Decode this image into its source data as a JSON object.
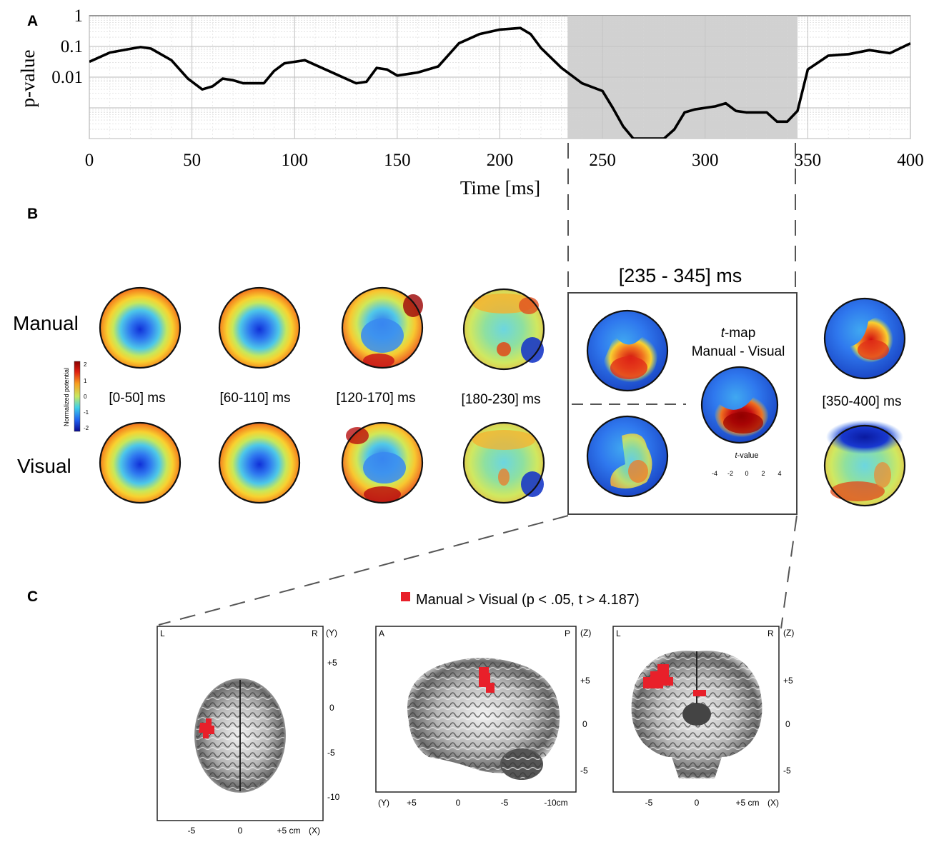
{
  "panels": {
    "a_label": "A",
    "b_label": "B",
    "c_label": "C"
  },
  "chart_data": {
    "type": "line",
    "title": "",
    "xlabel": "Time [ms]",
    "ylabel": "p-value",
    "xlim": [
      0,
      400
    ],
    "ylim_log10": [
      -4,
      0
    ],
    "x_ticks": [
      0,
      50,
      100,
      150,
      200,
      250,
      300,
      350,
      400
    ],
    "x_tick_labels": [
      "0",
      "50",
      "100",
      "150",
      "200",
      "250",
      "300",
      "350",
      "400"
    ],
    "y_tick_labels": [
      "1",
      "0.1",
      "0.01"
    ],
    "y_tick_values": [
      1,
      0.1,
      0.01
    ],
    "grid": true,
    "shaded_interval_ms": [
      233,
      345
    ],
    "series": [
      {
        "name": "p-value",
        "x": [
          0,
          10,
          20,
          25,
          30,
          40,
          48,
          55,
          60,
          65,
          70,
          75,
          80,
          85,
          90,
          95,
          100,
          105,
          110,
          120,
          130,
          135,
          140,
          145,
          150,
          155,
          160,
          170,
          180,
          190,
          200,
          210,
          215,
          220,
          230,
          240,
          250,
          255,
          260,
          265,
          270,
          280,
          285,
          290,
          295,
          300,
          305,
          310,
          315,
          320,
          325,
          330,
          335,
          340,
          345,
          350,
          360,
          370,
          380,
          390,
          400
        ],
        "y_log10": [
          -1.5,
          -1.2,
          -1.08,
          -1.02,
          -1.07,
          -1.45,
          -2.05,
          -2.4,
          -2.3,
          -2.05,
          -2.1,
          -2.2,
          -2.2,
          -2.2,
          -1.8,
          -1.55,
          -1.5,
          -1.45,
          -1.6,
          -1.9,
          -2.2,
          -2.15,
          -1.7,
          -1.75,
          -1.95,
          -1.9,
          -1.85,
          -1.65,
          -0.9,
          -0.6,
          -0.45,
          -0.4,
          -0.6,
          -1.05,
          -1.7,
          -2.2,
          -2.45,
          -3.0,
          -3.6,
          -4.0,
          -4.0,
          -4.0,
          -3.7,
          -3.15,
          -3.05,
          -3.0,
          -2.95,
          -2.85,
          -3.1,
          -3.15,
          -3.15,
          -3.15,
          -3.45,
          -3.45,
          -3.1,
          -1.75,
          -1.3,
          -1.25,
          -1.12,
          -1.22,
          -0.9
        ]
      }
    ]
  },
  "topomaps": {
    "section_range_label": "[235 - 345] ms",
    "row_labels": [
      "Manual",
      "Visual"
    ],
    "windows": [
      "[0-50] ms",
      "[60-110] ms",
      "[120-170] ms",
      "[180-230] ms",
      "[350-400] ms"
    ],
    "tmap_title_italic": "t",
    "tmap_title_rest": "-map",
    "tmap_subtitle": "Manual - Visual",
    "tvalue_label_italic": "t",
    "tvalue_label_rest": "-value",
    "tvalue_ticks": [
      "-4",
      "-2",
      "0",
      "2",
      "4"
    ],
    "colorbar_label": "Normalized potential",
    "colorbar_ticks": [
      "2",
      "1",
      "0",
      "-1",
      "-2"
    ]
  },
  "brain": {
    "legend": "Manual > Visual (p < .05,  t > 4.187)",
    "highlight_color": "#e8202a",
    "axial": {
      "corner_left": "L",
      "corner_right": "R",
      "axis_name": "(Y)",
      "right_ticks": [
        "+5",
        "0",
        "-5",
        "-10"
      ],
      "bottom_ticks": [
        "-5",
        "0",
        "+5 cm",
        "(X)"
      ]
    },
    "sagittal": {
      "corner_left": "A",
      "corner_right": "P",
      "axis_name": "(Z)",
      "right_ticks": [
        "+5",
        "0",
        "-5"
      ],
      "bottom_ticks": [
        "(Y)",
        "+5",
        "0",
        "-5",
        "-10cm"
      ]
    },
    "coronal": {
      "corner_left": "L",
      "corner_right": "R",
      "axis_name": "(Z)",
      "right_ticks": [
        "+5",
        "0",
        "-5"
      ],
      "bottom_ticks": [
        "-5",
        "0",
        "+5 cm",
        "(X)"
      ]
    }
  }
}
